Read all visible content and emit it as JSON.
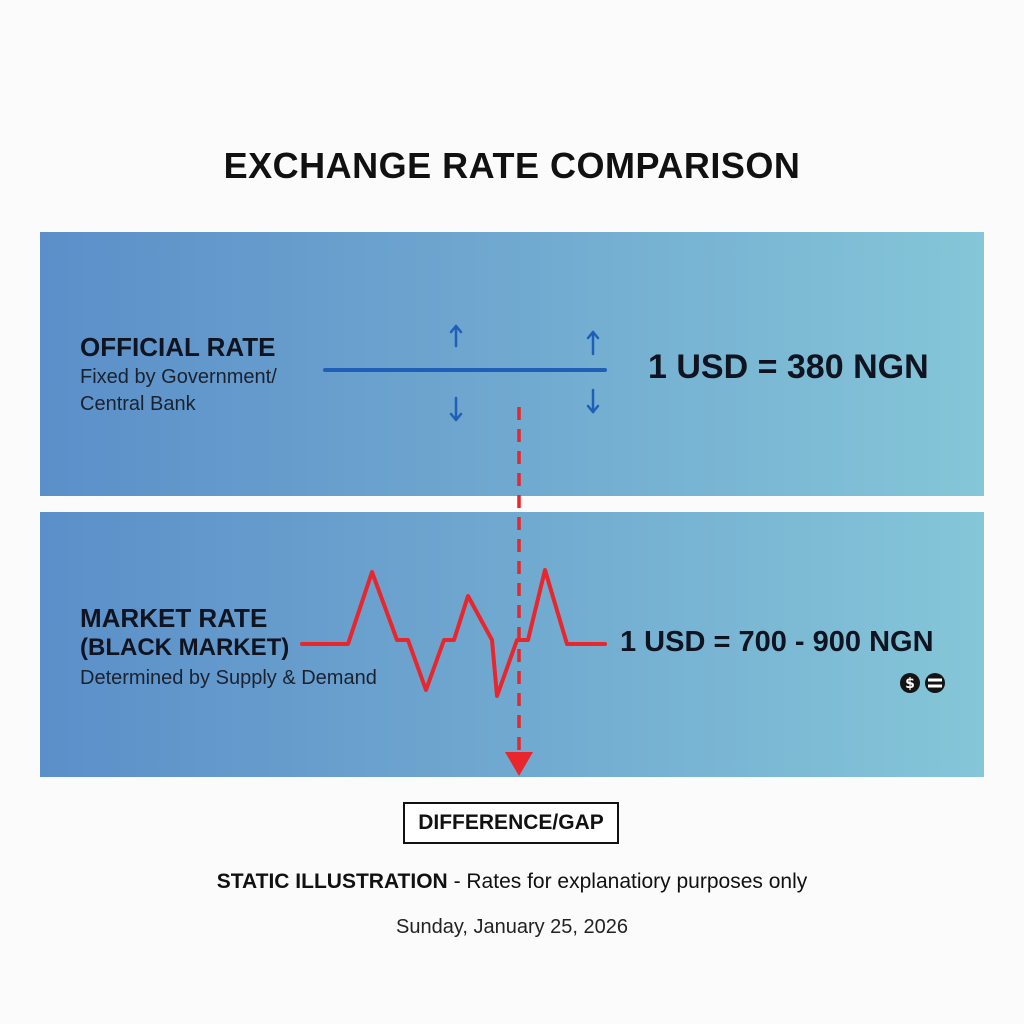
{
  "title": "EXCHANGE RATE COMPARISON",
  "official": {
    "label": "OFFICIAL RATE",
    "description_line1": "Fixed by Government/",
    "description_line2": "Central Bank",
    "rate": "1 USD = 380 NGN"
  },
  "market": {
    "label_line1": "MARKET RATE",
    "label_line2": "(BLACK MARKET)",
    "description": "Determined by Supply & Demand",
    "rate": "1 USD = 700 - 900 NGN",
    "icons": [
      "dollar-coin-icon",
      "equals-icon"
    ]
  },
  "gap_label": "DIFFERENCE/GAP",
  "disclaimer": {
    "strong": "STATIC ILLUSTRATION",
    "rest": " - Rates for explanatiory purposes only"
  },
  "date": "Sunday, January 25, 2026",
  "colors": {
    "official_line": "#1f5fb8",
    "market_line": "#e8262b",
    "gap_arrow": "#e8262b"
  }
}
